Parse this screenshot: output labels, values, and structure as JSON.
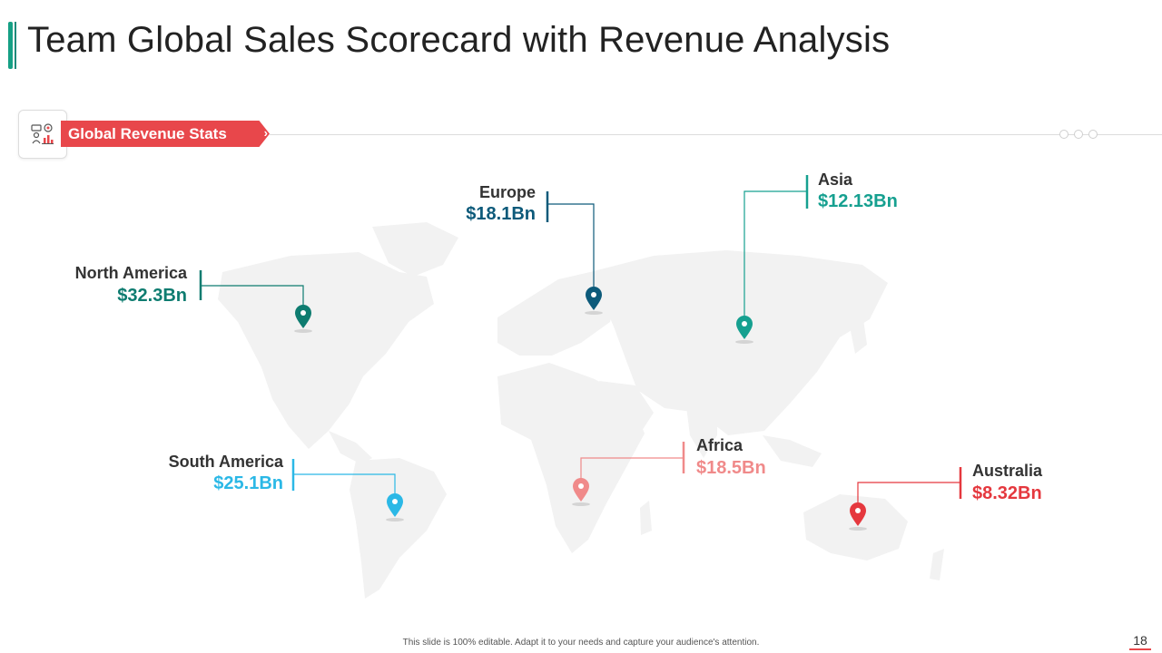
{
  "slide": {
    "title": "Team Global Sales Scorecard with Revenue Analysis",
    "section_label": "Global Revenue Stats",
    "section_icon": "sales-analytics-icon",
    "footer": "This slide is 100% editable. Adapt it to your needs and capture your audience's attention.",
    "page_number": "18",
    "accent_color": "#e8474b",
    "title_accent_color": "#16a085"
  },
  "regions": [
    {
      "name": "North America",
      "value": "$32.3Bn",
      "color": "#0e7c70"
    },
    {
      "name": "Europe",
      "value": "$18.1Bn",
      "color": "#0d5a7a"
    },
    {
      "name": "Asia",
      "value": "$12.13Bn",
      "color": "#16a090"
    },
    {
      "name": "South America",
      "value": "$25.1Bn",
      "color": "#2bb8e6"
    },
    {
      "name": "Africa",
      "value": "$18.5Bn",
      "color": "#f08a8a"
    },
    {
      "name": "Australia",
      "value": "$8.32Bn",
      "color": "#e5383e"
    }
  ]
}
